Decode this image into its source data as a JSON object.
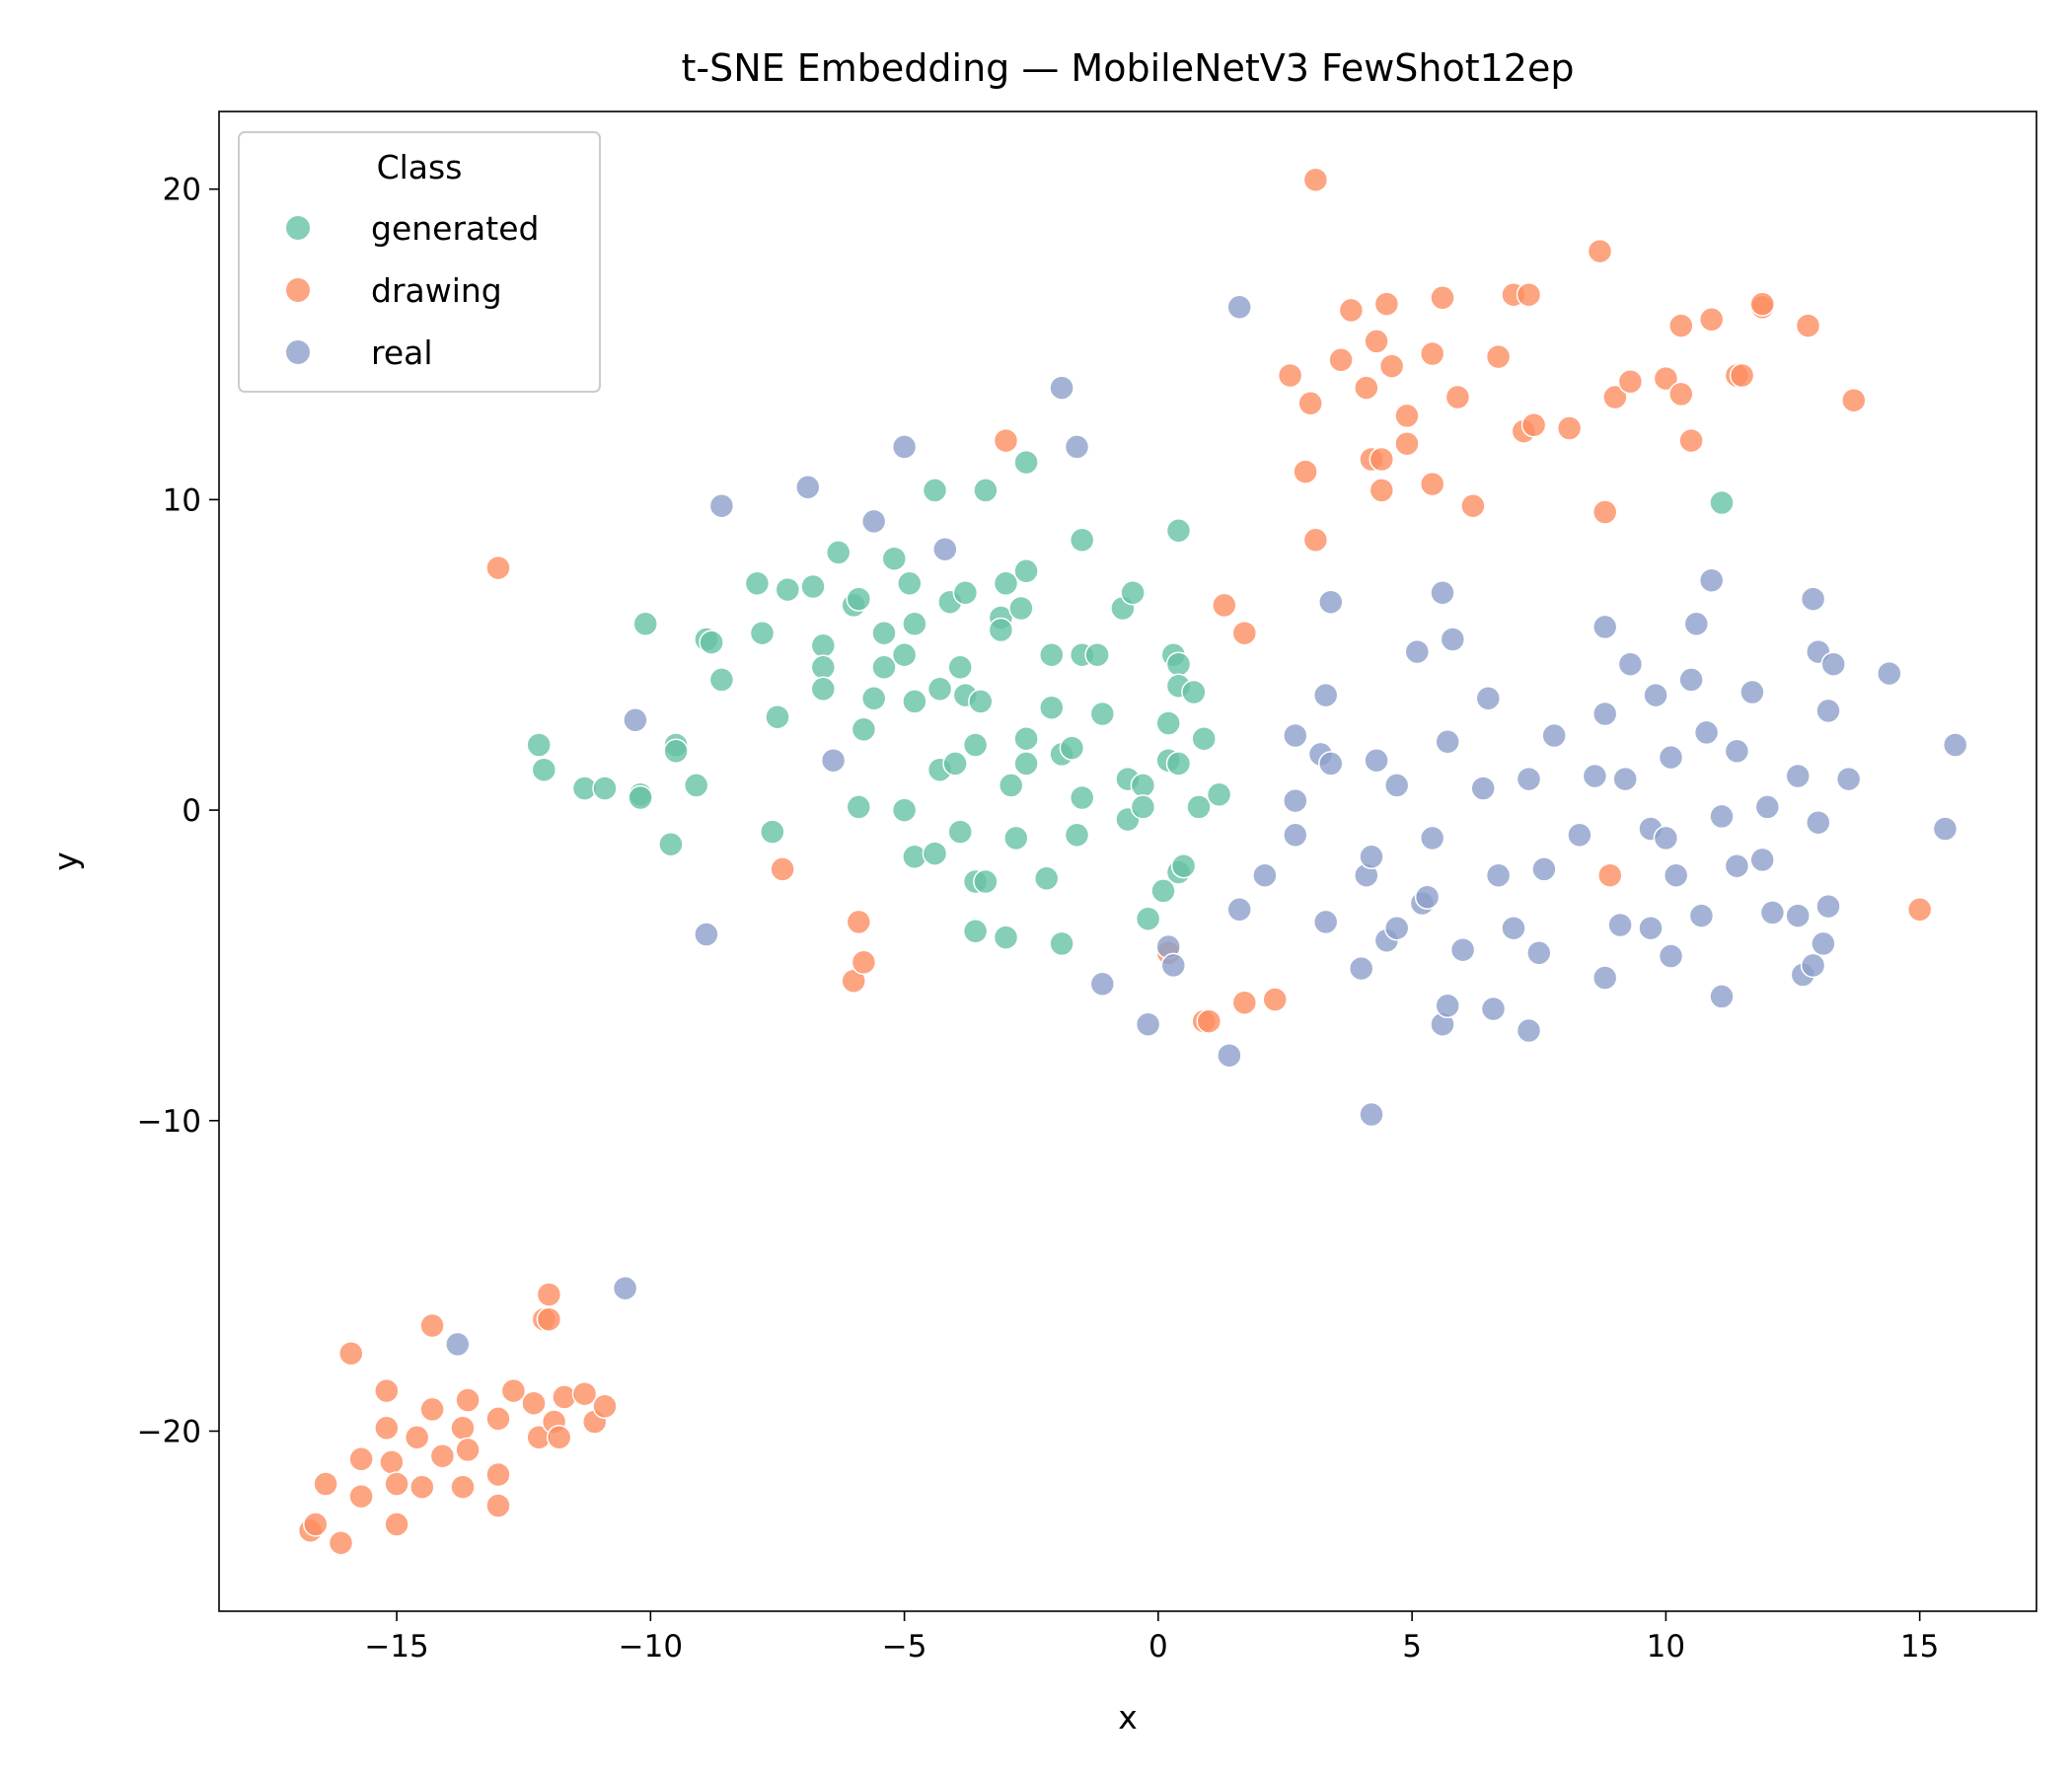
{
  "chart_data": {
    "type": "scatter",
    "title": "t-SNE Embedding — MobileNetV3 FewShot12ep",
    "xlabel": "x",
    "ylabel": "y",
    "xlim": [
      -18.5,
      17.3
    ],
    "ylim": [
      -25.8,
      22.5
    ],
    "xticks": [
      -15,
      -10,
      -5,
      0,
      5,
      10,
      15
    ],
    "yticks": [
      -20,
      -10,
      0,
      10,
      20
    ],
    "grid": false,
    "legend": {
      "title": "Class",
      "placement": "top-left"
    },
    "series": [
      {
        "name": "generated",
        "color": "#66c2a5",
        "points": [
          [
            -12.2,
            2.1
          ],
          [
            -12.1,
            1.3
          ],
          [
            -11.3,
            0.7
          ],
          [
            -10.9,
            0.7
          ],
          [
            -10.2,
            0.5
          ],
          [
            -10.2,
            0.4
          ],
          [
            -10.1,
            6.0
          ],
          [
            -9.6,
            -1.1
          ],
          [
            -9.5,
            2.1
          ],
          [
            -9.5,
            1.9
          ],
          [
            -9.1,
            0.8
          ],
          [
            -8.9,
            5.5
          ],
          [
            -8.8,
            5.4
          ],
          [
            -8.6,
            4.2
          ],
          [
            -7.9,
            7.3
          ],
          [
            -7.8,
            5.7
          ],
          [
            -7.6,
            -0.7
          ],
          [
            -7.5,
            3.0
          ],
          [
            -7.3,
            7.1
          ],
          [
            -6.8,
            7.2
          ],
          [
            -6.6,
            5.3
          ],
          [
            -6.6,
            4.6
          ],
          [
            -6.6,
            3.9
          ],
          [
            -6.3,
            8.3
          ],
          [
            -6.0,
            6.6
          ],
          [
            -5.9,
            6.8
          ],
          [
            -5.9,
            0.1
          ],
          [
            -5.8,
            2.6
          ],
          [
            -5.6,
            3.6
          ],
          [
            -5.4,
            5.7
          ],
          [
            -5.4,
            4.6
          ],
          [
            -5.2,
            8.1
          ],
          [
            -5.0,
            5.0
          ],
          [
            -5.0,
            0.0
          ],
          [
            -4.9,
            7.3
          ],
          [
            -4.8,
            6.0
          ],
          [
            -4.8,
            3.5
          ],
          [
            -4.8,
            -1.5
          ],
          [
            -4.4,
            10.3
          ],
          [
            -4.4,
            -1.4
          ],
          [
            -4.3,
            3.9
          ],
          [
            -4.3,
            1.3
          ],
          [
            -4.1,
            6.7
          ],
          [
            -4.0,
            1.5
          ],
          [
            -3.9,
            4.6
          ],
          [
            -3.9,
            -0.7
          ],
          [
            -3.8,
            7.0
          ],
          [
            -3.8,
            3.7
          ],
          [
            -3.6,
            2.1
          ],
          [
            -3.6,
            -2.3
          ],
          [
            -3.6,
            -3.9
          ],
          [
            -3.5,
            3.5
          ],
          [
            -3.4,
            10.3
          ],
          [
            -3.4,
            -2.3
          ],
          [
            -3.1,
            6.2
          ],
          [
            -3.1,
            5.8
          ],
          [
            -3.0,
            7.3
          ],
          [
            -3.0,
            -4.1
          ],
          [
            -2.9,
            0.8
          ],
          [
            -2.8,
            -0.9
          ],
          [
            -2.7,
            6.5
          ],
          [
            -2.6,
            11.2
          ],
          [
            -2.6,
            7.7
          ],
          [
            -2.6,
            2.3
          ],
          [
            -2.6,
            1.5
          ],
          [
            -2.2,
            -2.2
          ],
          [
            -2.1,
            5.0
          ],
          [
            -2.1,
            3.3
          ],
          [
            -1.9,
            1.8
          ],
          [
            -1.9,
            -4.3
          ],
          [
            -1.7,
            2.0
          ],
          [
            -1.6,
            -0.8
          ],
          [
            -1.5,
            8.7
          ],
          [
            -1.5,
            5.0
          ],
          [
            -1.5,
            0.4
          ],
          [
            -1.2,
            5.0
          ],
          [
            -1.1,
            3.1
          ],
          [
            -0.7,
            6.5
          ],
          [
            -0.6,
            1.0
          ],
          [
            -0.6,
            -0.3
          ],
          [
            -0.5,
            7.0
          ],
          [
            -0.3,
            0.8
          ],
          [
            -0.3,
            0.1
          ],
          [
            -0.2,
            -3.5
          ],
          [
            0.1,
            -2.6
          ],
          [
            0.2,
            2.8
          ],
          [
            0.2,
            1.6
          ],
          [
            0.3,
            5.0
          ],
          [
            0.4,
            4.7
          ],
          [
            0.4,
            4.0
          ],
          [
            0.4,
            1.5
          ],
          [
            0.4,
            -2.0
          ],
          [
            0.4,
            9.0
          ],
          [
            0.5,
            -1.8
          ],
          [
            0.7,
            3.8
          ],
          [
            0.8,
            0.1
          ],
          [
            0.9,
            2.3
          ],
          [
            1.2,
            0.5
          ],
          [
            11.1,
            9.9
          ]
        ]
      },
      {
        "name": "drawing",
        "color": "#fc8d62",
        "points": [
          [
            -16.7,
            -23.2
          ],
          [
            -16.6,
            -23.0
          ],
          [
            -16.4,
            -21.7
          ],
          [
            -16.1,
            -23.6
          ],
          [
            -15.9,
            -17.5
          ],
          [
            -15.7,
            -20.9
          ],
          [
            -15.7,
            -22.1
          ],
          [
            -15.2,
            -18.7
          ],
          [
            -15.2,
            -19.9
          ],
          [
            -15.1,
            -21.0
          ],
          [
            -15.0,
            -21.7
          ],
          [
            -15.0,
            -23.0
          ],
          [
            -14.6,
            -20.2
          ],
          [
            -14.5,
            -21.8
          ],
          [
            -14.3,
            -16.6
          ],
          [
            -14.3,
            -19.3
          ],
          [
            -14.1,
            -20.8
          ],
          [
            -13.7,
            -19.9
          ],
          [
            -13.7,
            -21.8
          ],
          [
            -13.6,
            -20.6
          ],
          [
            -13.6,
            -19.0
          ],
          [
            -13.0,
            -19.6
          ],
          [
            -13.0,
            -21.4
          ],
          [
            -13.0,
            -22.4
          ],
          [
            -13.0,
            7.8
          ],
          [
            -12.7,
            -18.7
          ],
          [
            -12.3,
            -19.1
          ],
          [
            -12.2,
            -20.2
          ],
          [
            -12.1,
            -16.4
          ],
          [
            -12.0,
            -15.6
          ],
          [
            -12.0,
            -16.4
          ],
          [
            -11.9,
            -19.7
          ],
          [
            -11.8,
            -20.2
          ],
          [
            -11.7,
            -18.9
          ],
          [
            -11.3,
            -18.8
          ],
          [
            -11.1,
            -19.7
          ],
          [
            -10.9,
            -19.2
          ],
          [
            -7.4,
            -1.9
          ],
          [
            -6.0,
            -5.5
          ],
          [
            -5.9,
            -3.6
          ],
          [
            -5.8,
            -4.9
          ],
          [
            -3.0,
            11.9
          ],
          [
            0.2,
            -4.6
          ],
          [
            0.9,
            -6.8
          ],
          [
            1.0,
            -6.8
          ],
          [
            1.3,
            6.6
          ],
          [
            1.7,
            5.7
          ],
          [
            1.7,
            -6.2
          ],
          [
            2.3,
            -6.1
          ],
          [
            2.6,
            14.0
          ],
          [
            2.9,
            10.9
          ],
          [
            3.0,
            13.1
          ],
          [
            3.1,
            20.3
          ],
          [
            3.1,
            8.7
          ],
          [
            3.6,
            14.5
          ],
          [
            3.8,
            16.1
          ],
          [
            4.1,
            13.6
          ],
          [
            4.2,
            11.3
          ],
          [
            4.3,
            15.1
          ],
          [
            4.4,
            11.3
          ],
          [
            4.4,
            10.3
          ],
          [
            4.5,
            16.3
          ],
          [
            4.6,
            14.3
          ],
          [
            4.9,
            12.7
          ],
          [
            4.9,
            11.8
          ],
          [
            5.4,
            14.7
          ],
          [
            5.4,
            10.5
          ],
          [
            5.6,
            16.5
          ],
          [
            5.9,
            13.3
          ],
          [
            6.2,
            9.8
          ],
          [
            6.7,
            14.6
          ],
          [
            7.0,
            16.6
          ],
          [
            7.2,
            12.2
          ],
          [
            7.3,
            16.6
          ],
          [
            7.4,
            12.4
          ],
          [
            8.1,
            12.3
          ],
          [
            8.7,
            18.0
          ],
          [
            8.8,
            9.6
          ],
          [
            8.9,
            -2.1
          ],
          [
            9.0,
            13.3
          ],
          [
            9.3,
            13.8
          ],
          [
            10.0,
            13.9
          ],
          [
            10.3,
            15.6
          ],
          [
            10.3,
            13.4
          ],
          [
            10.5,
            11.9
          ],
          [
            10.9,
            15.8
          ],
          [
            11.4,
            14.0
          ],
          [
            11.5,
            14.0
          ],
          [
            11.9,
            16.2
          ],
          [
            11.9,
            16.3
          ],
          [
            12.8,
            15.6
          ],
          [
            13.7,
            13.2
          ],
          [
            15.0,
            -3.2
          ]
        ]
      },
      {
        "name": "real",
        "color": "#8da0cb",
        "points": [
          [
            -13.8,
            -17.2
          ],
          [
            -10.5,
            -15.4
          ],
          [
            -10.3,
            2.9
          ],
          [
            -8.9,
            -4.0
          ],
          [
            -8.6,
            9.8
          ],
          [
            -6.9,
            10.4
          ],
          [
            -6.4,
            1.6
          ],
          [
            -5.6,
            9.3
          ],
          [
            -5.0,
            11.7
          ],
          [
            -4.2,
            8.4
          ],
          [
            -1.9,
            13.6
          ],
          [
            -1.6,
            11.7
          ],
          [
            -1.1,
            -5.6
          ],
          [
            -0.2,
            -6.9
          ],
          [
            0.2,
            -4.4
          ],
          [
            0.3,
            -5.0
          ],
          [
            1.4,
            -7.9
          ],
          [
            1.6,
            16.2
          ],
          [
            1.6,
            -3.2
          ],
          [
            2.1,
            -2.1
          ],
          [
            2.7,
            2.4
          ],
          [
            2.7,
            0.3
          ],
          [
            2.7,
            -0.8
          ],
          [
            3.2,
            1.8
          ],
          [
            3.3,
            3.7
          ],
          [
            3.3,
            -3.6
          ],
          [
            3.4,
            1.5
          ],
          [
            3.4,
            6.7
          ],
          [
            4.0,
            -5.1
          ],
          [
            4.1,
            -2.1
          ],
          [
            4.2,
            -9.8
          ],
          [
            4.2,
            -1.5
          ],
          [
            4.3,
            1.6
          ],
          [
            4.5,
            -4.2
          ],
          [
            4.7,
            0.8
          ],
          [
            4.7,
            -3.8
          ],
          [
            5.1,
            5.1
          ],
          [
            5.2,
            -3.0
          ],
          [
            5.3,
            -2.8
          ],
          [
            5.4,
            -0.9
          ],
          [
            5.6,
            7.0
          ],
          [
            5.6,
            -6.9
          ],
          [
            5.7,
            2.2
          ],
          [
            5.7,
            -6.3
          ],
          [
            5.8,
            5.5
          ],
          [
            6.0,
            -4.5
          ],
          [
            6.4,
            0.7
          ],
          [
            6.5,
            3.6
          ],
          [
            6.6,
            -6.4
          ],
          [
            6.7,
            -2.1
          ],
          [
            7.0,
            -3.8
          ],
          [
            7.3,
            1.0
          ],
          [
            7.3,
            -7.1
          ],
          [
            7.5,
            -4.6
          ],
          [
            7.6,
            -1.9
          ],
          [
            7.8,
            2.4
          ],
          [
            8.3,
            -0.8
          ],
          [
            8.6,
            1.1
          ],
          [
            8.8,
            -5.4
          ],
          [
            8.8,
            3.1
          ],
          [
            8.8,
            5.9
          ],
          [
            9.1,
            -3.7
          ],
          [
            9.2,
            1.0
          ],
          [
            9.3,
            4.7
          ],
          [
            9.7,
            -0.6
          ],
          [
            9.7,
            -3.8
          ],
          [
            9.8,
            3.7
          ],
          [
            10.0,
            -0.9
          ],
          [
            10.1,
            -4.7
          ],
          [
            10.1,
            1.7
          ],
          [
            10.2,
            -2.1
          ],
          [
            10.5,
            4.2
          ],
          [
            10.6,
            6.0
          ],
          [
            10.7,
            -3.4
          ],
          [
            10.8,
            2.5
          ],
          [
            10.9,
            7.4
          ],
          [
            11.1,
            -0.2
          ],
          [
            11.1,
            -6.0
          ],
          [
            11.4,
            1.9
          ],
          [
            11.4,
            -1.8
          ],
          [
            11.7,
            3.8
          ],
          [
            11.9,
            -1.6
          ],
          [
            12.0,
            0.1
          ],
          [
            12.1,
            -3.3
          ],
          [
            12.6,
            1.1
          ],
          [
            12.6,
            -3.4
          ],
          [
            12.7,
            -5.3
          ],
          [
            12.9,
            -5.0
          ],
          [
            12.9,
            6.8
          ],
          [
            13.0,
            5.1
          ],
          [
            13.0,
            -0.4
          ],
          [
            13.1,
            -4.3
          ],
          [
            13.2,
            3.2
          ],
          [
            13.2,
            -3.1
          ],
          [
            13.3,
            4.7
          ],
          [
            13.6,
            1.0
          ],
          [
            14.4,
            4.4
          ],
          [
            15.5,
            -0.6
          ],
          [
            15.7,
            2.1
          ]
        ]
      }
    ]
  }
}
